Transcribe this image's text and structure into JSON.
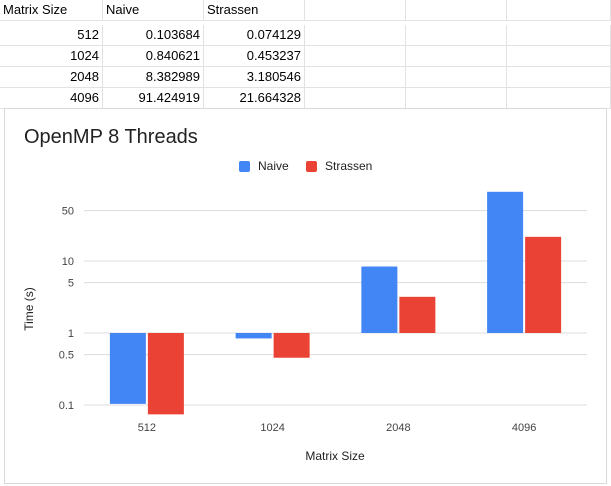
{
  "sheet": {
    "headers": [
      "Matrix Size",
      "Naive",
      "Strassen"
    ],
    "rows": [
      [
        "512",
        "0.103684",
        "0.074129"
      ],
      [
        "1024",
        "0.840621",
        "0.453237"
      ],
      [
        "2048",
        "8.382989",
        "3.180546"
      ],
      [
        "4096",
        "91.424919",
        "21.664328"
      ]
    ]
  },
  "chart": {
    "title": "OpenMP 8 Threads",
    "xlabel": "Matrix Size",
    "ylabel": "Time (s)"
  },
  "colors": {
    "naive": "#4285f4",
    "strassen": "#ea4335"
  },
  "chart_data": {
    "type": "bar",
    "title": "OpenMP 8 Threads",
    "xlabel": "Matrix Size",
    "ylabel": "Time (s)",
    "yscale": "log",
    "categories": [
      "512",
      "1024",
      "2048",
      "4096"
    ],
    "series": [
      {
        "name": "Naive",
        "values": [
          0.103684,
          0.840621,
          8.382989,
          91.424919
        ]
      },
      {
        "name": "Strassen",
        "values": [
          0.074129,
          0.453237,
          3.180546,
          21.664328
        ]
      }
    ],
    "yticks": [
      "0.1",
      "0.5",
      "1",
      "5",
      "10",
      "50"
    ],
    "legend": "top-center",
    "grid": true
  }
}
